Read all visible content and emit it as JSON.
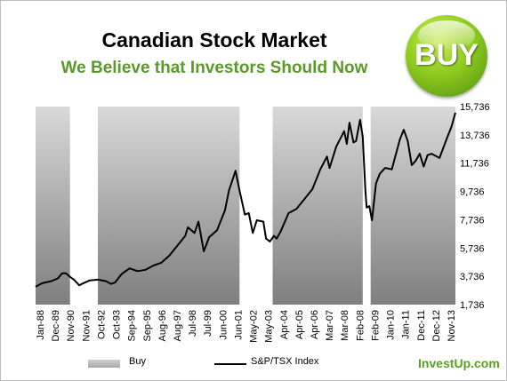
{
  "header": {
    "title": "Canadian Stock Market",
    "subtitle": "We Believe that Investors Should Now",
    "badge": "BUY"
  },
  "legend": {
    "buy_label": "Buy",
    "index_label": "S&P/TSX Index"
  },
  "brand": "InvestUp.com",
  "colors": {
    "subtitle": "#5a9a2a",
    "badge": "#8fcc1f",
    "buy_band_top": "#d9d9d9",
    "buy_band_bottom": "#7f7f7f",
    "series": "#000000",
    "brand": "#5aa020"
  },
  "chart_data": {
    "type": "line",
    "title": "",
    "xlabel": "",
    "ylabel": "",
    "x_range": [
      "Jan-88",
      "Jun-14"
    ],
    "ylim": [
      1736,
      15736
    ],
    "y_ticks": [
      1736,
      3736,
      5736,
      7736,
      9736,
      11736,
      13736,
      15736
    ],
    "y_tick_labels": [
      "1,736",
      "3,736",
      "5,736",
      "7,736",
      "9,736",
      "11,736",
      "13,736",
      "15,736"
    ],
    "x_tick_labels": [
      "Jan-88",
      "Dec-89",
      "Nov-90",
      "Nov-91",
      "Oct-92",
      "Oct-93",
      "Sep-94",
      "Sep-95",
      "Aug-96",
      "Aug-97",
      "Jul-98",
      "Jul-99",
      "Jun-00",
      "Jun-01",
      "May-02",
      "May-03",
      "Apr-04",
      "Apr-05",
      "Apr-06",
      "Mar-07",
      "Mar-08",
      "Feb-08",
      "Feb-09",
      "Jan-10",
      "Jan-11",
      "Dec-11",
      "Dec-12",
      "Nov-13"
    ],
    "buy_periods": [
      {
        "start": "Jan-88",
        "end": "Mar-90"
      },
      {
        "start": "Dec-91",
        "end": "Nov-00"
      },
      {
        "start": "Dec-02",
        "end": "Aug-08"
      },
      {
        "start": "Feb-09",
        "end": "Jun-14"
      }
    ],
    "series": [
      {
        "name": "S&P/TSX Index",
        "points": [
          [
            "Jan-88",
            3000
          ],
          [
            "Jun-88",
            3250
          ],
          [
            "Jan-89",
            3400
          ],
          [
            "Jun-89",
            3600
          ],
          [
            "Sep-89",
            3950
          ],
          [
            "Dec-89",
            3950
          ],
          [
            "Mar-90",
            3700
          ],
          [
            "Jun-90",
            3500
          ],
          [
            "Oct-90",
            3100
          ],
          [
            "Jan-91",
            3250
          ],
          [
            "Jun-91",
            3450
          ],
          [
            "Dec-91",
            3500
          ],
          [
            "Jun-92",
            3400
          ],
          [
            "Oct-92",
            3200
          ],
          [
            "Jan-93",
            3300
          ],
          [
            "Jun-93",
            3900
          ],
          [
            "Dec-93",
            4300
          ],
          [
            "Jun-94",
            4100
          ],
          [
            "Dec-94",
            4200
          ],
          [
            "Jun-95",
            4500
          ],
          [
            "Dec-95",
            4700
          ],
          [
            "Jun-96",
            5200
          ],
          [
            "Dec-96",
            5900
          ],
          [
            "Jun-97",
            6600
          ],
          [
            "Aug-97",
            7200
          ],
          [
            "Jan-98",
            6800
          ],
          [
            "Apr-98",
            7600
          ],
          [
            "Aug-98",
            5500
          ],
          [
            "Dec-98",
            6500
          ],
          [
            "Jun-99",
            7000
          ],
          [
            "Dec-99",
            8400
          ],
          [
            "Mar-00",
            9800
          ],
          [
            "Aug-00",
            11200
          ],
          [
            "Nov-00",
            9800
          ],
          [
            "Mar-01",
            8100
          ],
          [
            "Jun-01",
            8200
          ],
          [
            "Sep-01",
            6800
          ],
          [
            "Dec-01",
            7700
          ],
          [
            "May-02",
            7600
          ],
          [
            "Jul-02",
            6400
          ],
          [
            "Oct-02",
            6200
          ],
          [
            "Jan-03",
            6600
          ],
          [
            "Mar-03",
            6400
          ],
          [
            "Jun-03",
            6900
          ],
          [
            "Dec-03",
            8200
          ],
          [
            "Jun-04",
            8500
          ],
          [
            "Dec-04",
            9200
          ],
          [
            "Jun-05",
            9900
          ],
          [
            "Dec-05",
            11300
          ],
          [
            "May-06",
            12200
          ],
          [
            "Jul-06",
            11400
          ],
          [
            "Dec-06",
            12900
          ],
          [
            "Jun-07",
            14000
          ],
          [
            "Aug-07",
            13100
          ],
          [
            "Oct-07",
            14600
          ],
          [
            "Jan-08",
            13200
          ],
          [
            "Mar-08",
            13300
          ],
          [
            "Jun-08",
            14800
          ],
          [
            "Aug-08",
            13600
          ],
          [
            "Oct-08",
            9800
          ],
          [
            "Nov-08",
            8600
          ],
          [
            "Jan-09",
            8700
          ],
          [
            "Mar-09",
            7700
          ],
          [
            "Jun-09",
            10300
          ],
          [
            "Sep-09",
            11000
          ],
          [
            "Jan-10",
            11400
          ],
          [
            "Jun-10",
            11300
          ],
          [
            "Dec-10",
            13400
          ],
          [
            "Mar-11",
            14100
          ],
          [
            "Jun-11",
            13300
          ],
          [
            "Sep-11",
            11600
          ],
          [
            "Dec-11",
            11900
          ],
          [
            "Mar-12",
            12400
          ],
          [
            "Jun-12",
            11500
          ],
          [
            "Sep-12",
            12300
          ],
          [
            "Dec-12",
            12400
          ],
          [
            "Jun-13",
            12100
          ],
          [
            "Dec-13",
            13600
          ],
          [
            "Mar-14",
            14300
          ],
          [
            "Jun-14",
            15300
          ]
        ]
      }
    ]
  }
}
